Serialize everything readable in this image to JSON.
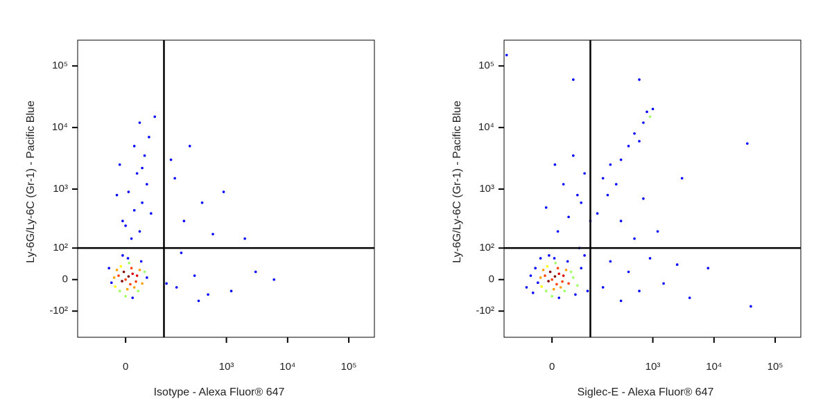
{
  "chart_data": [
    {
      "type": "scatter",
      "scale": "biexponential",
      "color": "#0000ff",
      "xlabel": "Isotype - Alexa Fluor® 647",
      "ylabel": "Ly-6G/Ly-6C (Gr-1) - Pacific Blue",
      "xlim": [
        -133,
        262144
      ],
      "ylim": [
        -290,
        262144
      ],
      "xticks": [
        0,
        {
          "value": 1000,
          "label": "10³"
        },
        {
          "value": 10000,
          "label": "10⁴"
        },
        {
          "value": 100000,
          "label": "10⁵"
        }
      ],
      "yticks": [
        {
          "value": -100,
          "label": "-10²"
        },
        0,
        {
          "value": 100,
          "label": "10²"
        },
        {
          "value": 1000,
          "label": "10³"
        },
        {
          "value": 10000,
          "label": "10⁴"
        },
        {
          "value": 100000,
          "label": "10⁵"
        }
      ],
      "gate_x": 90,
      "gate_y": 100,
      "x": [
        0,
        5,
        -6,
        12,
        -12,
        8,
        -3,
        18,
        25,
        -18,
        3,
        10,
        -10,
        20,
        -20,
        15,
        30,
        -8,
        6,
        0,
        35,
        -25,
        22,
        -15,
        40,
        4,
        -30,
        28,
        12,
        -5,
        10,
        25,
        -5,
        15,
        30,
        5,
        40,
        20,
        -10,
        35,
        15,
        45,
        25,
        60,
        -15,
        50,
        0,
        30,
        150,
        300,
        500,
        1200,
        3000,
        6000,
        200,
        400,
        900,
        250,
        120,
        600,
        2000,
        180,
        350,
        100,
        140
      ],
      "y": [
        0,
        8,
        -4,
        15,
        10,
        -12,
        20,
        -5,
        25,
        -18,
        -25,
        30,
        -30,
        10,
        5,
        -20,
        -10,
        35,
        45,
        -45,
        20,
        -8,
        -30,
        25,
        5,
        60,
        30,
        50,
        -50,
        70,
        150,
        200,
        300,
        450,
        600,
        900,
        1200,
        1800,
        2500,
        3500,
        5000,
        7000,
        12000,
        15000,
        800,
        400,
        250,
        2200,
        -20,
        10,
        -40,
        -30,
        20,
        0,
        300,
        600,
        900,
        5000,
        3000,
        180,
        150,
        80,
        -60,
        -10,
        1500
      ]
    },
    {
      "type": "scatter",
      "scale": "biexponential",
      "color": "#0000ff",
      "xlabel": "Siglec-E - Alexa Fluor® 647",
      "ylabel": "Ly-6G/Ly-6C (Gr-1) - Pacific Blue",
      "xlim": [
        -133,
        262144
      ],
      "ylim": [
        -290,
        262144
      ],
      "xticks": [
        0,
        {
          "value": 1000,
          "label": "10³"
        },
        {
          "value": 10000,
          "label": "10⁴"
        },
        {
          "value": 100000,
          "label": "10⁵"
        }
      ],
      "yticks": [
        {
          "value": -100,
          "label": "-10²"
        },
        0,
        {
          "value": 100,
          "label": "10²"
        },
        {
          "value": 1000,
          "label": "10³"
        },
        {
          "value": 10000,
          "label": "10⁴"
        },
        {
          "value": 100000,
          "label": "10⁵"
        }
      ],
      "gate_x": 90,
      "gate_y": 100,
      "x": [
        0,
        5,
        -6,
        12,
        -12,
        8,
        -3,
        18,
        25,
        -18,
        3,
        10,
        -10,
        20,
        -20,
        15,
        30,
        -8,
        6,
        0,
        35,
        -25,
        22,
        -15,
        40,
        4,
        -30,
        28,
        12,
        -5,
        -40,
        -50,
        50,
        60,
        45,
        -35,
        70,
        -20,
        55,
        80,
        10,
        30,
        -10,
        50,
        20,
        70,
        5,
        40,
        90,
        60,
        150,
        200,
        300,
        400,
        500,
        700,
        800,
        900,
        250,
        600,
        1000,
        180,
        150,
        200,
        300,
        400,
        600,
        900,
        1500,
        2500,
        4000,
        8000,
        300,
        500,
        1200,
        120,
        40000,
        35000,
        3000,
        700,
        -120,
        40,
        600
      ],
      "y": [
        0,
        8,
        -4,
        15,
        10,
        -12,
        20,
        -5,
        25,
        -18,
        -25,
        30,
        -30,
        10,
        5,
        -20,
        -10,
        35,
        45,
        -45,
        20,
        -8,
        -30,
        25,
        5,
        60,
        30,
        50,
        -50,
        70,
        10,
        -20,
        -15,
        30,
        -40,
        -35,
        70,
        60,
        100,
        -30,
        200,
        350,
        500,
        800,
        1200,
        1800,
        2500,
        3500,
        300,
        600,
        1500,
        2500,
        3000,
        5000,
        8000,
        12000,
        18000,
        15000,
        1200,
        6000,
        20000,
        800,
        -20,
        50,
        -60,
        20,
        -30,
        60,
        -10,
        40,
        -50,
        30,
        300,
        150,
        200,
        400,
        -80,
        5500,
        1500,
        700,
        150000,
        60000,
        60000
      ]
    }
  ]
}
